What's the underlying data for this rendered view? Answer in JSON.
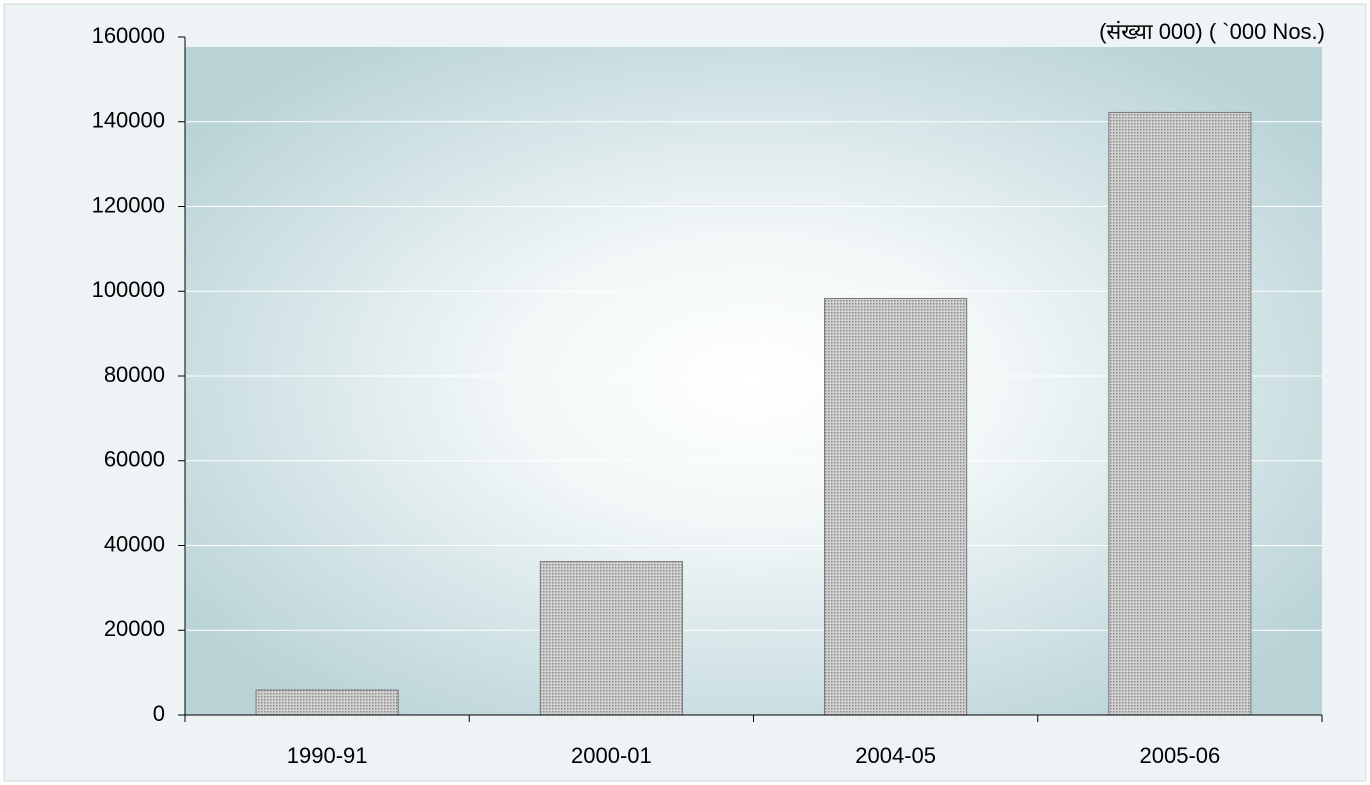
{
  "chart_data": {
    "type": "bar",
    "annotation": "(संख्या 000) ( `000 Nos.)",
    "categories": [
      "1990-91",
      "2000-01",
      "2004-05",
      "2005-06"
    ],
    "values": [
      5900,
      36200,
      98300,
      142200
    ],
    "color": "#b4b4b4",
    "ylim": [
      0,
      160000
    ],
    "yticks": [
      0,
      20000,
      40000,
      60000,
      80000,
      100000,
      120000,
      140000,
      160000
    ],
    "grid": true
  }
}
